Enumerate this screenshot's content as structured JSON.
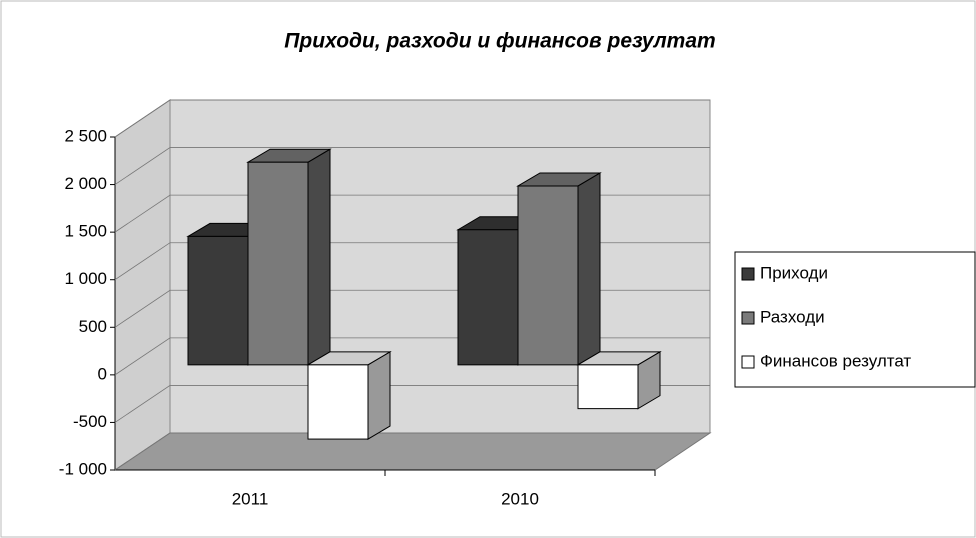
{
  "chart_data": {
    "type": "bar3d",
    "title": "Приходи, разходи и финансов резултат",
    "categories": [
      "2011",
      "2010"
    ],
    "series": [
      {
        "name": "Приходи",
        "color": "#3a3a3a",
        "values": [
          1350,
          1420
        ]
      },
      {
        "name": "Разходи",
        "color": "#7a7a7a",
        "values": [
          2130,
          1880
        ]
      },
      {
        "name": "Финансов резултат",
        "color": "#ffffff",
        "values": [
          -780,
          -460
        ]
      }
    ],
    "ylim": [
      -1000,
      2500
    ],
    "yticks": [
      {
        "value": -1000,
        "label": "-1 000"
      },
      -500,
      0,
      500,
      {
        "value": 1000,
        "label": "1 000"
      },
      {
        "value": 1500,
        "label": "1 500"
      },
      {
        "value": 2000,
        "label": "2 000"
      },
      {
        "value": 2500,
        "label": "2 500"
      }
    ],
    "grid": true,
    "legend": "right"
  }
}
